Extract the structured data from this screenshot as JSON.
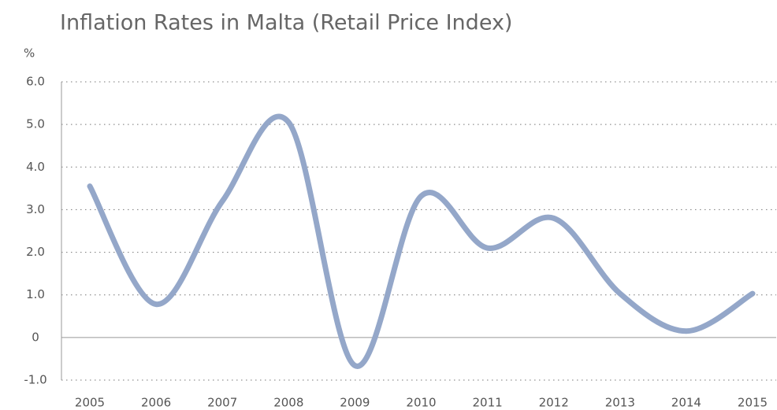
{
  "chart_data": {
    "type": "line",
    "title": "Inflation Rates in Malta (Retail Price Index)",
    "y_label": "%",
    "categories": [
      "2005",
      "2006",
      "2007",
      "2008",
      "2009",
      "2010",
      "2011",
      "2012",
      "2013",
      "2014",
      "2015"
    ],
    "series": [
      {
        "name": "Inflation rate",
        "color": "#94a7c9",
        "values": [
          3.55,
          0.78,
          3.2,
          5.05,
          -0.66,
          3.32,
          2.1,
          2.8,
          1.03,
          0.15,
          1.03
        ]
      }
    ],
    "ylim": [
      -1,
      6
    ],
    "yticks": [
      {
        "value": -1,
        "label": "-1.0"
      },
      0,
      {
        "value": 1,
        "label": "1.0"
      },
      {
        "value": 2,
        "label": "2.0"
      },
      {
        "value": 3,
        "label": "3.0"
      },
      {
        "value": 4,
        "label": "4.0"
      },
      {
        "value": 5,
        "label": "5.0"
      },
      {
        "value": 6,
        "label": "6.0"
      }
    ],
    "grid": true,
    "smooth": true
  }
}
